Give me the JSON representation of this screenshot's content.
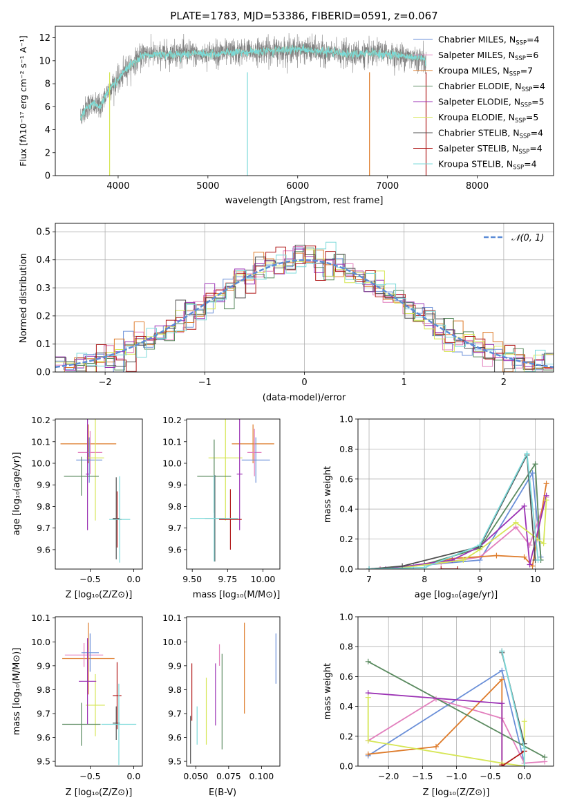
{
  "colors": {
    "cm": "#6a8fd8",
    "sm": "#e27fbd",
    "km": "#de7b2a",
    "ce": "#5a8a5f",
    "se": "#9b32b4",
    "ke": "#d6e655",
    "cs": "#505050",
    "ss": "#b01818",
    "ks": "#7ad9d9",
    "data": "#808080",
    "grid": "#b0b0b0",
    "gauss": "#5b8bd6"
  },
  "chart_data": [
    {
      "id": "spectrum",
      "type": "line",
      "title": "PLATE=1783, MJD=53386, FIBERID=0591, z=0.067",
      "xlabel": "wavelength [Angstrom, rest frame]",
      "ylabel": "Flux [fλ10⁻¹⁷ erg cm⁻² s⁻¹ A⁻¹]",
      "xlim": [
        3300,
        8850
      ],
      "ylim": [
        0,
        13
      ],
      "xticks": [
        4000,
        5000,
        6000,
        7000,
        8000
      ],
      "yticks": [
        0,
        2,
        4,
        6,
        8,
        10,
        12
      ],
      "grid": false,
      "legend": "upper right",
      "continuum": {
        "x": [
          3580,
          3650,
          3700,
          3800,
          3900,
          4000,
          4100,
          4200,
          4300,
          4400,
          4600,
          5000,
          5500,
          6000,
          6500,
          7000,
          7400,
          7430
        ],
        "y": [
          5.0,
          6.0,
          6.2,
          6.0,
          7.6,
          8.3,
          9.4,
          10.0,
          10.6,
          10.5,
          10.6,
          10.6,
          10.8,
          11.0,
          10.6,
          10.6,
          10.2,
          9.8
        ]
      },
      "data_range": [
        3580,
        7430
      ],
      "legend_entries": [
        {
          "key": "cm",
          "label": "Chabrier MILES, N",
          "nssp": "4"
        },
        {
          "key": "sm",
          "label": "Salpeter MILES, N",
          "nssp": "6"
        },
        {
          "key": "km",
          "label": "Kroupa MILES, N",
          "nssp": "7"
        },
        {
          "key": "ce",
          "label": "Chabrier ELODIE, N",
          "nssp": "4"
        },
        {
          "key": "se",
          "label": "Salpeter ELODIE, N",
          "nssp": "5"
        },
        {
          "key": "ke",
          "label": "Kroupa ELODIE, N",
          "nssp": "5"
        },
        {
          "key": "cs",
          "label": "Chabrier STELIB, N",
          "nssp": "4"
        },
        {
          "key": "ss",
          "label": "Salpeter STELIB, N",
          "nssp": "4"
        },
        {
          "key": "ks",
          "label": "Kroupa STELIB, N",
          "nssp": "4"
        }
      ],
      "nssp_sub": "SSP"
    },
    {
      "id": "residuals",
      "type": "bar",
      "xlabel": "(data-model)/error",
      "ylabel": "Normed distribution",
      "xlim": [
        -2.5,
        2.5
      ],
      "ylim": [
        0,
        0.53
      ],
      "xticks": [
        -2,
        -1,
        0,
        1,
        2
      ],
      "yticks": [
        0,
        0.1,
        0.2,
        0.3,
        0.4,
        0.5
      ],
      "grid": true,
      "legend": "upper right",
      "legend_label": "𝒩(0, 1)",
      "bin_width": 0.1
    },
    {
      "id": "z-vs-age",
      "type": "scatter",
      "xlabel": "Z [log₁₀(Z/Z⊙)]",
      "ylabel": "age  [log₁₀(age/yr)]",
      "xlim": [
        -0.9,
        0.1
      ],
      "ylim": [
        9.51,
        10.205
      ],
      "xticks": [
        -0.5,
        0.0
      ],
      "yticks": [
        9.6,
        9.7,
        9.8,
        9.9,
        10.0,
        10.1,
        10.2
      ],
      "grid": false,
      "points": [
        {
          "key": "km",
          "x": -0.52,
          "y": 10.09,
          "xerr": 0.32,
          "yerr": 0.09
        },
        {
          "key": "sm",
          "x": -0.5,
          "y": 10.05,
          "xerr": 0.14,
          "yerr": 0.1
        },
        {
          "key": "cm",
          "x": -0.51,
          "y": 10.015,
          "xerr": 0.15,
          "yerr": 0.105
        },
        {
          "key": "ke",
          "x": -0.44,
          "y": 10.025,
          "xerr": 0.1,
          "yerr": 0.29
        },
        {
          "key": "ce",
          "x": -0.6,
          "y": 9.94,
          "xerr": 0.2,
          "yerr": 0.09
        },
        {
          "key": "se",
          "x": -0.53,
          "y": 9.95,
          "xerr": 0.02,
          "yerr": 0.26
        },
        {
          "key": "cs",
          "x": -0.2,
          "y": 9.745,
          "xerr": 0.04,
          "yerr": 0.19
        },
        {
          "key": "ss",
          "x": -0.19,
          "y": 9.74,
          "xerr": 0.05,
          "yerr": 0.13
        },
        {
          "key": "ks",
          "x": -0.16,
          "y": 9.74,
          "xerr": 0.12,
          "yerr": 0.2
        }
      ]
    },
    {
      "id": "mass-vs-age",
      "type": "scatter",
      "xlabel": "mass [log₁₀(M/M⊙)]",
      "ylabel": "",
      "xlim": [
        9.46,
        10.12
      ],
      "ylim": [
        9.51,
        10.205
      ],
      "xticks": [
        9.5,
        9.75,
        10.0
      ],
      "yticks": [
        9.6,
        9.7,
        9.8,
        9.9,
        10.0,
        10.1,
        10.2
      ],
      "grid": false,
      "points": [
        {
          "key": "km",
          "x": 9.93,
          "y": 10.09,
          "xerr": 0.15,
          "yerr": 0.09
        },
        {
          "key": "sm",
          "x": 9.94,
          "y": 10.05,
          "xerr": 0.05,
          "yerr": 0.11
        },
        {
          "key": "cm",
          "x": 9.95,
          "y": 10.015,
          "xerr": 0.1,
          "yerr": 0.105
        },
        {
          "key": "ke",
          "x": 9.735,
          "y": 10.025,
          "xerr": 0.12,
          "yerr": 0.29
        },
        {
          "key": "ce",
          "x": 9.655,
          "y": 9.94,
          "xerr": 0.12,
          "yerr": 0.17
        },
        {
          "key": "se",
          "x": 9.835,
          "y": 9.95,
          "xerr": 0.02,
          "yerr": 0.26
        },
        {
          "key": "cs",
          "x": 9.66,
          "y": 9.745,
          "xerr": 0.07,
          "yerr": 0.2
        },
        {
          "key": "ss",
          "x": 9.77,
          "y": 9.74,
          "xerr": 0.08,
          "yerr": 0.14
        },
        {
          "key": "ks",
          "x": 9.655,
          "y": 9.745,
          "xerr": 0.17,
          "yerr": 0.2
        }
      ]
    },
    {
      "id": "age-vs-weight",
      "type": "line",
      "xlabel": "age  [log₁₀(age/yr)]",
      "ylabel": "mass weight",
      "xlim": [
        6.8,
        10.33
      ],
      "ylim": [
        0,
        1.0
      ],
      "xticks": [
        7,
        8,
        9,
        10
      ],
      "yticks": [
        0,
        0.2,
        0.4,
        0.6,
        0.8,
        1.0
      ],
      "grid": true,
      "series": [
        {
          "key": "cm",
          "x": [
            7.0,
            7.8,
            9.0,
            9.95,
            10.1
          ],
          "y": [
            0.0,
            0.02,
            0.06,
            0.64,
            0.08
          ]
        },
        {
          "key": "sm",
          "x": [
            7.2,
            8.3,
            9.0,
            9.65,
            9.9,
            10.2
          ],
          "y": [
            0.0,
            0.04,
            0.08,
            0.28,
            0.16,
            0.48
          ]
        },
        {
          "key": "km",
          "x": [
            7.5,
            8.5,
            9.3,
            9.8,
            9.95,
            10.2
          ],
          "y": [
            0.0,
            0.07,
            0.09,
            0.08,
            0.02,
            0.57
          ]
        },
        {
          "key": "ce",
          "x": [
            7.0,
            8.0,
            9.0,
            10.0,
            10.1
          ],
          "y": [
            0.0,
            0.03,
            0.14,
            0.7,
            0.06
          ]
        },
        {
          "key": "se",
          "x": [
            7.3,
            8.5,
            9.0,
            9.8,
            9.9,
            10.2
          ],
          "y": [
            0.0,
            0.06,
            0.15,
            0.42,
            0.03,
            0.49
          ]
        },
        {
          "key": "ke",
          "x": [
            7.4,
            8.7,
            9.0,
            9.65,
            10.15,
            10.2
          ],
          "y": [
            0.0,
            0.06,
            0.13,
            0.31,
            0.17,
            0.46
          ]
        },
        {
          "key": "cs",
          "x": [
            7.0,
            7.6,
            9.0,
            9.85,
            10.0
          ],
          "y": [
            0.0,
            0.02,
            0.15,
            0.76,
            0.06
          ]
        },
        {
          "key": "ss",
          "x": [
            8.3,
            8.6
          ],
          "y": [
            0.0,
            0.0
          ]
        },
        {
          "key": "ks",
          "x": [
            7.0,
            8.0,
            9.0,
            9.85,
            10.05
          ],
          "y": [
            0.0,
            0.01,
            0.16,
            0.77,
            0.06
          ]
        }
      ]
    },
    {
      "id": "z-vs-mass",
      "type": "scatter",
      "xlabel": "Z [log₁₀(Z/Z⊙)]",
      "ylabel": "mass [log₁₀(M/M⊙)]",
      "xlim": [
        -0.9,
        0.1
      ],
      "ylim": [
        9.48,
        10.105
      ],
      "xticks": [
        -0.5,
        0.0
      ],
      "yticks": [
        9.5,
        9.6,
        9.7,
        9.8,
        9.9,
        10.0,
        10.1
      ],
      "grid": false,
      "points": [
        {
          "key": "km",
          "x": -0.52,
          "y": 9.93,
          "xerr": 0.3,
          "yerr": 0.15
        },
        {
          "key": "sm",
          "x": -0.57,
          "y": 9.945,
          "xerr": 0.22,
          "yerr": 0.05
        },
        {
          "key": "cm",
          "x": -0.5,
          "y": 9.955,
          "xerr": 0.1,
          "yerr": 0.08
        },
        {
          "key": "ke",
          "x": -0.44,
          "y": 9.735,
          "xerr": 0.11,
          "yerr": 0.13
        },
        {
          "key": "ce",
          "x": -0.6,
          "y": 9.655,
          "xerr": 0.22,
          "yerr": 0.09
        },
        {
          "key": "se",
          "x": -0.53,
          "y": 9.835,
          "xerr": 0.1,
          "yerr": 0.18
        },
        {
          "key": "cs",
          "x": -0.2,
          "y": 9.66,
          "xerr": 0.04,
          "yerr": 0.07
        },
        {
          "key": "ss",
          "x": -0.19,
          "y": 9.775,
          "xerr": 0.05,
          "yerr": 0.14
        },
        {
          "key": "ks",
          "x": -0.17,
          "y": 9.655,
          "xerr": 0.2,
          "yerr": 0.17
        }
      ]
    },
    {
      "id": "ebv-vs-mass",
      "type": "scatter",
      "xlabel": "E(B-V)",
      "ylabel": "",
      "xlim": [
        0.043,
        0.114
      ],
      "ylim": [
        9.48,
        10.105
      ],
      "xticks": [
        0.05,
        0.075,
        0.1
      ],
      "yticks": [
        9.5,
        9.6,
        9.7,
        9.8,
        9.9,
        10.0,
        10.1
      ],
      "grid": false,
      "points": [
        {
          "key": "cm",
          "x": 0.111,
          "y": 9.93,
          "yerr": 0.105
        },
        {
          "key": "km",
          "x": 0.087,
          "y": 9.89,
          "yerr": 0.19
        },
        {
          "key": "sm",
          "x": 0.068,
          "y": 9.945,
          "yerr": 0.045
        },
        {
          "key": "ce",
          "x": 0.07,
          "y": 9.75,
          "yerr": 0.2
        },
        {
          "key": "se",
          "x": 0.065,
          "y": 9.78,
          "yerr": 0.13
        },
        {
          "key": "ke",
          "x": 0.058,
          "y": 9.71,
          "yerr": 0.14
        },
        {
          "key": "cs",
          "x": 0.046,
          "y": 9.59,
          "yerr": 0.1
        },
        {
          "key": "ss",
          "x": 0.047,
          "y": 9.79,
          "yerr": 0.12
        },
        {
          "key": "ks",
          "x": 0.051,
          "y": 9.65,
          "yerr": 0.08
        }
      ]
    },
    {
      "id": "z-vs-weight",
      "type": "line",
      "xlabel": "Z [log₁₀(Z/Z⊙)]",
      "ylabel": "mass weight",
      "xlim": [
        -2.45,
        0.43
      ],
      "ylim": [
        0,
        1.0
      ],
      "xticks": [
        -2.0,
        -1.5,
        -1.0,
        -0.5,
        0.0
      ],
      "yticks": [
        0,
        0.2,
        0.4,
        0.6,
        0.8,
        1.0
      ],
      "grid": true,
      "series": [
        {
          "key": "cm",
          "x": [
            -2.3,
            -0.33,
            0.0
          ],
          "y": [
            0.07,
            0.64,
            0.02
          ]
        },
        {
          "key": "sm",
          "x": [
            -2.3,
            -1.3,
            -0.33,
            0.0,
            0.3
          ],
          "y": [
            0.17,
            0.45,
            0.32,
            0.02,
            0.03
          ]
        },
        {
          "key": "km",
          "x": [
            -2.3,
            -1.3,
            -0.33,
            -0.33
          ],
          "y": [
            0.08,
            0.13,
            0.58,
            0.01
          ]
        },
        {
          "key": "ce",
          "x": [
            -2.3,
            0.3
          ],
          "y": [
            0.7,
            0.06
          ]
        },
        {
          "key": "se",
          "x": [
            -2.3,
            -0.33,
            -0.33
          ],
          "y": [
            0.49,
            0.42,
            0.0
          ]
        },
        {
          "key": "ke",
          "x": [
            -2.3,
            -2.3,
            -0.33,
            0.0,
            0.0
          ],
          "y": [
            0.46,
            0.17,
            0.02,
            0.0,
            0.3
          ]
        },
        {
          "key": "cs",
          "x": [
            -0.33,
            -0.33,
            0.0
          ],
          "y": [
            0.77,
            0.76,
            0.15
          ]
        },
        {
          "key": "ss",
          "x": [
            -0.33,
            -0.33,
            0.0
          ],
          "y": [
            0.0,
            0.0,
            0.1
          ]
        },
        {
          "key": "ks",
          "x": [
            -0.33,
            0.0,
            0.0
          ],
          "y": [
            0.77,
            0.12,
            0.0
          ]
        }
      ]
    }
  ]
}
